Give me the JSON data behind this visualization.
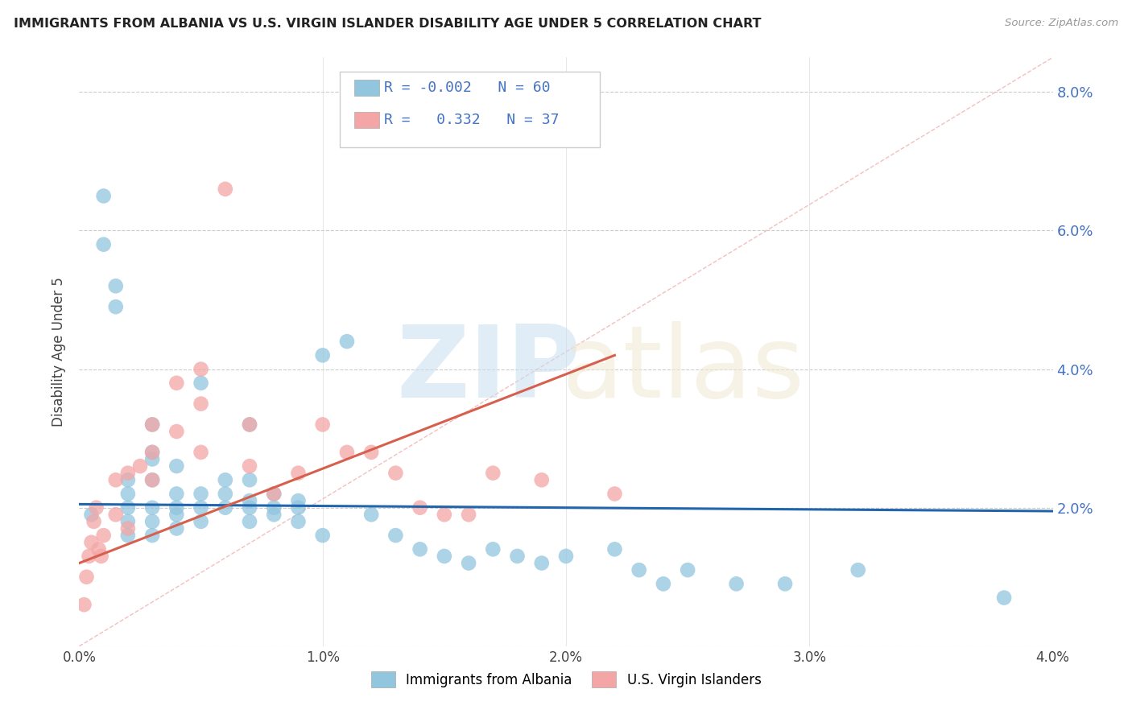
{
  "title": "IMMIGRANTS FROM ALBANIA VS U.S. VIRGIN ISLANDER DISABILITY AGE UNDER 5 CORRELATION CHART",
  "source": "Source: ZipAtlas.com",
  "ylabel": "Disability Age Under 5",
  "xmin": 0.0,
  "xmax": 0.04,
  "ymin": 0.0,
  "ymax": 0.085,
  "yticks": [
    0.0,
    0.02,
    0.04,
    0.06,
    0.08
  ],
  "ytick_labels": [
    "",
    "2.0%",
    "4.0%",
    "6.0%",
    "8.0%"
  ],
  "xticks": [
    0.0,
    0.01,
    0.02,
    0.03,
    0.04
  ],
  "xtick_labels": [
    "0.0%",
    "1.0%",
    "2.0%",
    "3.0%",
    "4.0%"
  ],
  "blue_color": "#92c5de",
  "pink_color": "#f4a6a6",
  "trend_blue_color": "#2166ac",
  "trend_pink_color": "#d6604d",
  "ref_line_color": "#f4a0a0",
  "albania_x": [
    0.0005,
    0.001,
    0.001,
    0.0015,
    0.0015,
    0.002,
    0.002,
    0.002,
    0.002,
    0.002,
    0.003,
    0.003,
    0.003,
    0.003,
    0.003,
    0.003,
    0.003,
    0.004,
    0.004,
    0.004,
    0.004,
    0.004,
    0.005,
    0.005,
    0.005,
    0.005,
    0.006,
    0.006,
    0.006,
    0.007,
    0.007,
    0.007,
    0.007,
    0.007,
    0.008,
    0.008,
    0.008,
    0.009,
    0.009,
    0.009,
    0.01,
    0.01,
    0.011,
    0.012,
    0.013,
    0.014,
    0.015,
    0.016,
    0.017,
    0.018,
    0.019,
    0.02,
    0.022,
    0.023,
    0.024,
    0.025,
    0.027,
    0.029,
    0.032,
    0.038
  ],
  "albania_y": [
    0.019,
    0.065,
    0.058,
    0.052,
    0.049,
    0.016,
    0.018,
    0.02,
    0.022,
    0.024,
    0.016,
    0.018,
    0.02,
    0.024,
    0.027,
    0.028,
    0.032,
    0.017,
    0.019,
    0.02,
    0.022,
    0.026,
    0.018,
    0.02,
    0.022,
    0.038,
    0.02,
    0.022,
    0.024,
    0.018,
    0.02,
    0.021,
    0.024,
    0.032,
    0.019,
    0.02,
    0.022,
    0.018,
    0.02,
    0.021,
    0.016,
    0.042,
    0.044,
    0.019,
    0.016,
    0.014,
    0.013,
    0.012,
    0.014,
    0.013,
    0.012,
    0.013,
    0.014,
    0.011,
    0.009,
    0.011,
    0.009,
    0.009,
    0.011,
    0.007
  ],
  "virgin_x": [
    0.0002,
    0.0003,
    0.0004,
    0.0005,
    0.0006,
    0.0007,
    0.0008,
    0.0009,
    0.001,
    0.0015,
    0.0015,
    0.002,
    0.002,
    0.0025,
    0.003,
    0.003,
    0.003,
    0.004,
    0.004,
    0.005,
    0.005,
    0.005,
    0.006,
    0.007,
    0.007,
    0.008,
    0.009,
    0.01,
    0.011,
    0.012,
    0.013,
    0.014,
    0.015,
    0.016,
    0.017,
    0.019,
    0.022
  ],
  "virgin_y": [
    0.006,
    0.01,
    0.013,
    0.015,
    0.018,
    0.02,
    0.014,
    0.013,
    0.016,
    0.019,
    0.024,
    0.017,
    0.025,
    0.026,
    0.024,
    0.028,
    0.032,
    0.031,
    0.038,
    0.04,
    0.035,
    0.028,
    0.066,
    0.026,
    0.032,
    0.022,
    0.025,
    0.032,
    0.028,
    0.028,
    0.025,
    0.02,
    0.019,
    0.019,
    0.025,
    0.024,
    0.022
  ],
  "albania_trend_x": [
    0.0,
    0.04
  ],
  "albania_trend_y": [
    0.0205,
    0.0195
  ],
  "virgin_trend_x": [
    0.0,
    0.022
  ],
  "virgin_trend_y": [
    0.012,
    0.042
  ]
}
